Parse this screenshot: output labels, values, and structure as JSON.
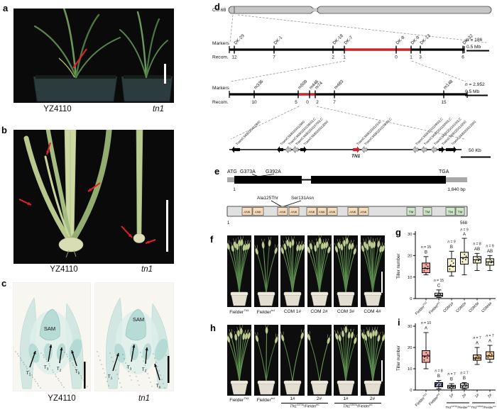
{
  "colors": {
    "accent_red": "#d42027",
    "box_pink": "#f2a6a1",
    "box_yellow": "#f6f2cf",
    "box_orange": "#f6c98f",
    "box_navy": "#3d4a75",
    "ank_fill": "#f9dcb8",
    "tm_fill": "#cde6c5",
    "chromosome_gray": "#c6c6c6",
    "stain_teal": "#aeded8"
  },
  "panels": {
    "a": {
      "letter": "a",
      "labels": {
        "left": "YZ4110",
        "right": "tn1"
      }
    },
    "b": {
      "letter": "b",
      "labels": {
        "left": "YZ4110",
        "right": "tn1"
      }
    },
    "c": {
      "letter": "c",
      "labels": {
        "left": "YZ4110",
        "right": "tn1"
      },
      "sam": "SAM",
      "tillers_left": [
        "T1",
        "T3",
        "T2",
        "T0"
      ],
      "tillers_right": [
        "T1",
        "T3",
        "T2",
        "T0"
      ]
    },
    "d": {
      "letter": "d",
      "chromosome": "Chr.6B",
      "map1": {
        "row_label_markers": "Markers",
        "row_label_recom": "Recom.",
        "markers": [
          "DK-29",
          "DK-1",
          "DK-18",
          "DK-7",
          "DK-8",
          "DK-9",
          "DK-13",
          "DK-32"
        ],
        "recom": [
          "12",
          "7",
          "2",
          "1",
          "0",
          "1",
          "3",
          "6"
        ],
        "n": [
          {
            "t": "n",
            "s": "i"
          },
          {
            "t": " = 186"
          }
        ],
        "scale": "0.5 Mb"
      },
      "map2": {
        "row_label_markers": "Markers",
        "row_label_recom": "Recom.",
        "markers": [
          "m336",
          "m509",
          "m446",
          "m74",
          "m483",
          "m148"
        ],
        "recom": [
          "10",
          "5",
          "0",
          "2",
          "7",
          "15"
        ],
        "n": [
          {
            "t": "n",
            "s": "i"
          },
          {
            "t": " = 2,952"
          }
        ],
        "scale": "0.5 Mb"
      },
      "genes": {
        "names": [
          "TraesCS6B02G012800",
          "TraesCS6B02G012900",
          "TraesCS6B02G015600LC",
          "TraesCS6B02G015700LC",
          "TraesCS6B02G013000",
          "TraesCS6B02G013100",
          "TraesCS6B02G015800LC",
          "TraesCS6B02G015900LC",
          "TraesCS6B02G016000LC",
          "TraesCS6B02G016100LC",
          "TraesCS6B02G013200",
          "TraesCS6B02G013300"
        ],
        "tn1": "TN1",
        "scale": "50 Kb"
      }
    },
    "e": {
      "letter": "e",
      "start_codon": "ATG",
      "mut1": "G373A",
      "mut2": "G392A",
      "stop_codon": "TGA",
      "pos_start": "1",
      "pos_end": "1,840 bp",
      "aa1": "Ala125Thr",
      "aa2": "Ser131Asn",
      "ank": "ANK",
      "tm": "TM",
      "aa_start": "1",
      "aa_end": "568"
    },
    "f": {
      "letter": "f",
      "captions": [
        [
          {
            "t": "Fielder"
          },
          {
            "t": "TN1",
            "s": "si"
          }
        ],
        [
          {
            "t": "Fielder"
          },
          {
            "t": "tn1",
            "s": "si"
          }
        ],
        [
          {
            "t": "COM 1#"
          }
        ],
        [
          {
            "t": "COM 2#"
          }
        ],
        [
          {
            "t": "COM 3#"
          }
        ],
        [
          {
            "t": "COM 4#"
          }
        ]
      ],
      "photos": [
        {
          "stems": 9
        },
        {
          "stems": 4
        },
        {
          "stems": 8
        },
        {
          "stems": 9
        },
        {
          "stems": 8
        },
        {
          "stems": 9
        }
      ]
    },
    "g": {
      "letter": "g"
    },
    "h": {
      "letter": "h",
      "captions": [
        [
          {
            "t": "Fielder"
          },
          {
            "t": "TN1",
            "s": "si"
          }
        ],
        [
          {
            "t": "Fielder"
          },
          {
            "t": "tn1",
            "s": "si"
          }
        ]
      ],
      "sub": [
        "1#",
        "2#",
        "1#",
        "2#"
      ],
      "groups": [
        [
          {
            "t": "TN1",
            "s": "i"
          },
          {
            "t": "G373A",
            "s": "s"
          },
          {
            "t": "/Fielder"
          },
          {
            "t": "tn1",
            "s": "si"
          }
        ],
        [
          {
            "t": "TN1",
            "s": "i"
          },
          {
            "t": "G392A",
            "s": "s"
          },
          {
            "t": "/Fielder"
          },
          {
            "t": "tn1",
            "s": "si"
          }
        ]
      ],
      "photos": [
        {
          "stems": 8
        },
        {
          "stems": 3
        },
        {
          "stems": 2
        },
        {
          "stems": 2
        },
        {
          "stems": 7
        },
        {
          "stems": 8
        }
      ]
    },
    "i": {
      "letter": "i"
    }
  },
  "chart_data": [
    {
      "type": "box",
      "ylabel": "Tiller number",
      "ylim": [
        0,
        30
      ],
      "yticks": [
        0,
        10,
        20,
        30
      ],
      "boxes": [
        {
          "label": [
            {
              "t": "Fielder"
            },
            {
              "t": "TN1",
              "s": "si"
            }
          ],
          "n": 15,
          "sig": "B",
          "color": "#f2a6a1",
          "lo": 11,
          "q1": 12,
          "med": 14,
          "q3": 16.5,
          "hi": 19.5
        },
        {
          "label": [
            {
              "t": "Fielder"
            },
            {
              "t": "tn1",
              "s": "si"
            }
          ],
          "n": 15,
          "sig": "C",
          "color": "#ffffff",
          "lo": 0.5,
          "q1": 1,
          "med": 1.5,
          "q3": 2.5,
          "hi": 4
        },
        {
          "label": [
            {
              "t": "COM1#"
            }
          ],
          "n": 9,
          "sig": "B",
          "color": "#f6f2cf",
          "lo": 10.5,
          "q1": 12.5,
          "med": 15,
          "q3": 18.5,
          "hi": 22
        },
        {
          "label": [
            {
              "t": "COM2#"
            }
          ],
          "n": 9,
          "sig": "A",
          "color": "#f6f2cf",
          "lo": 11,
          "q1": 16,
          "med": 19,
          "q3": 21.5,
          "hi": 28
        },
        {
          "label": [
            {
              "t": "COM3#"
            }
          ],
          "n": 8,
          "sig": "AB",
          "color": "#f6f2cf",
          "lo": 13,
          "q1": 16.5,
          "med": 18,
          "q3": 19.5,
          "hi": 21
        },
        {
          "label": [
            {
              "t": "COM4#"
            }
          ],
          "n": 9,
          "sig": "AB",
          "color": "#f6f2cf",
          "lo": 13,
          "q1": 15.5,
          "med": 17,
          "q3": 18.5,
          "hi": 20
        }
      ]
    },
    {
      "type": "box",
      "ylabel": "Tiller number",
      "ylim": [
        0,
        30
      ],
      "yticks": [
        0,
        10,
        20,
        30
      ],
      "boxes": [
        {
          "label": [
            {
              "t": "Fielder"
            },
            {
              "t": "TN1",
              "s": "si"
            }
          ],
          "n": 10,
          "sig": "A",
          "color": "#f2a6a1",
          "lo": 10,
          "q1": 13,
          "med": 16,
          "q3": 18.5,
          "hi": 27
        },
        {
          "label": [
            {
              "t": "Fielder"
            },
            {
              "t": "tn1",
              "s": "si"
            }
          ],
          "n": 8,
          "sig": "B",
          "color": "#3d4a75",
          "lo": 0.5,
          "q1": 1.5,
          "med": 2.5,
          "q3": 3.5,
          "hi": 4.5
        },
        {
          "label": [
            {
              "t": "1#"
            }
          ],
          "n": 7,
          "sig": "B",
          "color": "#ffffff",
          "lo": 0,
          "q1": 0.8,
          "med": 1.5,
          "q3": 2.2,
          "hi": 3
        },
        {
          "label": [
            {
              "t": "2#"
            }
          ],
          "n": 7,
          "sig": "B",
          "color": "#ffffff",
          "lo": 0.5,
          "q1": 1,
          "med": 2,
          "q3": 3,
          "hi": 3.5
        },
        {
          "label": [
            {
              "t": "1#"
            }
          ],
          "n": 7,
          "sig": "A",
          "color": "#f6c98f",
          "lo": 12,
          "q1": 14,
          "med": 15,
          "q3": 16.5,
          "hi": 20
        },
        {
          "label": [
            {
              "t": "2#"
            }
          ],
          "n": 7,
          "sig": "A",
          "color": "#f6c98f",
          "lo": 13,
          "q1": 14.5,
          "med": 16,
          "q3": 18,
          "hi": 21
        }
      ],
      "groups": [
        {
          "span": [
            2,
            3
          ],
          "label": [
            {
              "t": "TN1",
              "s": "i"
            },
            {
              "t": "G373A",
              "s": "s"
            },
            {
              "t": "/Fielder"
            },
            {
              "t": "tn1",
              "s": "si"
            }
          ]
        },
        {
          "span": [
            4,
            5
          ],
          "label": [
            {
              "t": "TN1",
              "s": "i"
            },
            {
              "t": "G392A",
              "s": "s"
            },
            {
              "t": "/Fielder"
            },
            {
              "t": "tn1",
              "s": "si"
            }
          ]
        }
      ]
    }
  ]
}
